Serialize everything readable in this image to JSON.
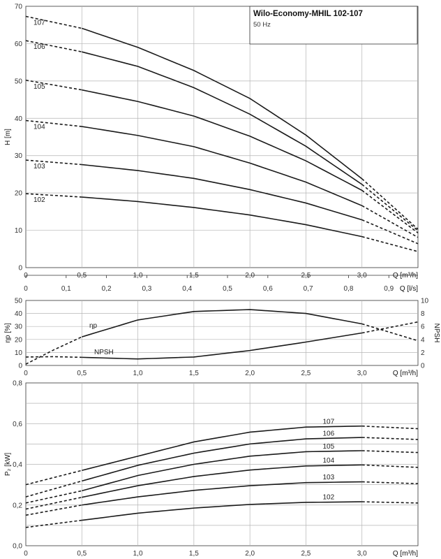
{
  "title": "Wilo-Economy-MHIL 102-107",
  "subtitle": "50 Hz",
  "chart_data": [
    {
      "id": "head",
      "type": "line",
      "xlabel": "Q [m³/h]",
      "ylabel": "H [m]",
      "xlim": [
        0,
        3.5
      ],
      "ylim": [
        0,
        70
      ],
      "xticks": [
        "0",
        "0,5",
        "1,0",
        "1,5",
        "2,0",
        "2,5",
        "3,0"
      ],
      "yticks": [
        "0",
        "10",
        "20",
        "30",
        "40",
        "50",
        "60",
        "70"
      ],
      "secondary_x": {
        "label": "Q [l/s]",
        "ticks": [
          "0",
          "0,1",
          "0,2",
          "0,3",
          "0,4",
          "0,5",
          "0,6",
          "0,7",
          "0,8",
          "0,9"
        ]
      },
      "grid": true,
      "series": [
        {
          "name": "102",
          "x": [
            0,
            0.5,
            1.0,
            1.5,
            2.0,
            2.5,
            3.0,
            3.5
          ],
          "y": [
            19.8,
            18.9,
            17.7,
            16.1,
            14.1,
            11.5,
            8.3,
            4.3
          ]
        },
        {
          "name": "103",
          "x": [
            0,
            0.5,
            1.0,
            1.5,
            2.0,
            2.5,
            3.0,
            3.5
          ],
          "y": [
            28.8,
            27.6,
            26.0,
            23.9,
            20.9,
            17.3,
            12.8,
            6.4
          ]
        },
        {
          "name": "104",
          "x": [
            0,
            0.5,
            1.0,
            1.5,
            2.0,
            2.5,
            3.0,
            3.5
          ],
          "y": [
            39.4,
            37.8,
            35.4,
            32.4,
            28.0,
            22.9,
            16.6,
            8.1
          ]
        },
        {
          "name": "105",
          "x": [
            0,
            0.5,
            1.0,
            1.5,
            2.0,
            2.5,
            3.0,
            3.5
          ],
          "y": [
            50.2,
            47.6,
            44.5,
            40.6,
            35.2,
            28.6,
            20.7,
            9.3
          ]
        },
        {
          "name": "106",
          "x": [
            0,
            0.5,
            1.0,
            1.5,
            2.0,
            2.5,
            3.0,
            3.5
          ],
          "y": [
            60.8,
            57.8,
            53.9,
            48.2,
            41.1,
            32.5,
            22.3,
            9.9
          ]
        },
        {
          "name": "107",
          "x": [
            0,
            0.5,
            1.0,
            1.5,
            2.0,
            2.5,
            3.0,
            3.5
          ],
          "y": [
            67.3,
            64.1,
            59.0,
            52.8,
            45.3,
            35.5,
            23.8,
            10.3
          ]
        }
      ],
      "solid_range": [
        0.5,
        3.0
      ]
    },
    {
      "id": "efficiency",
      "type": "line",
      "xlabel": "Q [m³/h]",
      "ylabel": "ηp [%]",
      "ylabel_right": "NPSH",
      "xlim": [
        0,
        3.5
      ],
      "ylim": [
        0,
        50
      ],
      "ylim_right": [
        0,
        10
      ],
      "xticks": [
        "0",
        "0,5",
        "1,0",
        "1,5",
        "2,0",
        "2,5",
        "3,0"
      ],
      "yticks": [
        "0",
        "10",
        "20",
        "30",
        "40",
        "50"
      ],
      "yticks_right": [
        "0",
        "2",
        "4",
        "6",
        "8",
        "10"
      ],
      "grid": true,
      "series": [
        {
          "name": "ηp",
          "axis": "left",
          "x": [
            0,
            0.25,
            0.5,
            1.0,
            1.5,
            2.0,
            2.5,
            3.0,
            3.5
          ],
          "y": [
            1,
            12,
            22,
            35,
            41.5,
            43,
            40,
            32,
            19
          ]
        },
        {
          "name": "NPSH",
          "axis": "right",
          "x": [
            0,
            0.25,
            0.5,
            1.0,
            1.5,
            2.0,
            2.5,
            3.0,
            3.5
          ],
          "y": [
            1.3,
            1.35,
            1.25,
            1.0,
            1.3,
            2.3,
            3.6,
            5.0,
            6.7
          ]
        }
      ],
      "solid_range": [
        0.5,
        3.0
      ]
    },
    {
      "id": "power",
      "type": "line",
      "xlabel": "Q [m³/h]",
      "ylabel": "P₂ [kW]",
      "xlim": [
        0,
        3.5
      ],
      "ylim": [
        0,
        0.8
      ],
      "xticks": [
        "0",
        "0,5",
        "1,0",
        "1,5",
        "2,0",
        "2,5",
        "3,0"
      ],
      "yticks": [
        "0,0",
        "0,2",
        "0,4",
        "0,6",
        "0,8"
      ],
      "grid": true,
      "series": [
        {
          "name": "102",
          "x": [
            0,
            0.5,
            1.0,
            1.5,
            2.0,
            2.5,
            3.0,
            3.5
          ],
          "y": [
            0.09,
            0.125,
            0.16,
            0.185,
            0.203,
            0.213,
            0.216,
            0.21
          ]
        },
        {
          "name": "103",
          "x": [
            0,
            0.5,
            1.0,
            1.5,
            2.0,
            2.5,
            3.0,
            3.5
          ],
          "y": [
            0.15,
            0.2,
            0.24,
            0.272,
            0.295,
            0.31,
            0.314,
            0.305
          ]
        },
        {
          "name": "104",
          "x": [
            0,
            0.5,
            1.0,
            1.5,
            2.0,
            2.5,
            3.0,
            3.5
          ],
          "y": [
            0.18,
            0.238,
            0.295,
            0.34,
            0.372,
            0.392,
            0.397,
            0.385
          ]
        },
        {
          "name": "105",
          "x": [
            0,
            0.5,
            1.0,
            1.5,
            2.0,
            2.5,
            3.0,
            3.5
          ],
          "y": [
            0.21,
            0.27,
            0.345,
            0.4,
            0.44,
            0.462,
            0.467,
            0.458
          ]
        },
        {
          "name": "106",
          "x": [
            0,
            0.5,
            1.0,
            1.5,
            2.0,
            2.5,
            3.0,
            3.5
          ],
          "y": [
            0.24,
            0.318,
            0.395,
            0.455,
            0.5,
            0.525,
            0.532,
            0.522
          ]
        },
        {
          "name": "107",
          "x": [
            0,
            0.5,
            1.0,
            1.5,
            2.0,
            2.5,
            3.0,
            3.5
          ],
          "y": [
            0.3,
            0.37,
            0.44,
            0.51,
            0.558,
            0.583,
            0.588,
            0.575
          ]
        }
      ],
      "solid_range": [
        0.5,
        3.0
      ]
    }
  ]
}
